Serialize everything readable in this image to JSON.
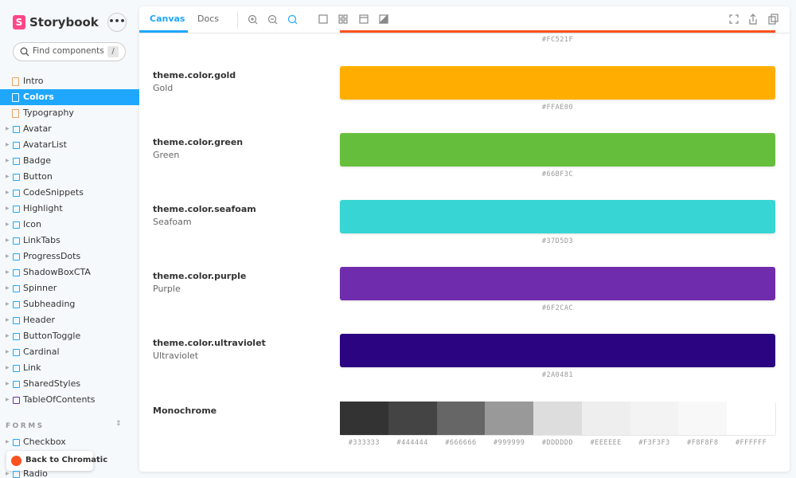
{
  "sidebar": {
    "brand": "Storybook",
    "search_placeholder": "Find components",
    "search_shortcut": "/",
    "docs": [
      "Intro",
      "Colors",
      "Typography"
    ],
    "components": [
      "Avatar",
      "AvatarList",
      "Badge",
      "Button",
      "CodeSnippets",
      "Highlight",
      "Icon",
      "LinkTabs",
      "ProgressDots",
      "ShadowBoxCTA",
      "Spinner",
      "Subheading",
      "Header",
      "ButtonToggle",
      "Cardinal",
      "Link",
      "SharedStyles"
    ],
    "folders": [
      "TableOfContents"
    ],
    "section": "FORMS",
    "form_components": [
      "Checkbox",
      "Radio"
    ],
    "chromatic_button": "Back to Chromatic"
  },
  "toolbar": {
    "tabs": [
      "Canvas",
      "Docs"
    ]
  },
  "colors": {
    "previous_hex": "#FC521F",
    "rows": [
      {
        "name": "theme.color.gold",
        "label": "Gold",
        "hex": "#FFAE00"
      },
      {
        "name": "theme.color.green",
        "label": "Green",
        "hex": "#66BF3C"
      },
      {
        "name": "theme.color.seafoam",
        "label": "Seafoam",
        "hex": "#37D5D3"
      },
      {
        "name": "theme.color.purple",
        "label": "Purple",
        "hex": "#6F2CAC"
      },
      {
        "name": "theme.color.ultraviolet",
        "label": "Ultraviolet",
        "hex": "#2A0481"
      }
    ],
    "monochrome": {
      "name": "Monochrome",
      "swatches": [
        "#333333",
        "#444444",
        "#666666",
        "#999999",
        "#DDDDDD",
        "#EEEEEE",
        "#F3F3F3",
        "#F8F8F8",
        "#FFFFFF"
      ]
    }
  }
}
